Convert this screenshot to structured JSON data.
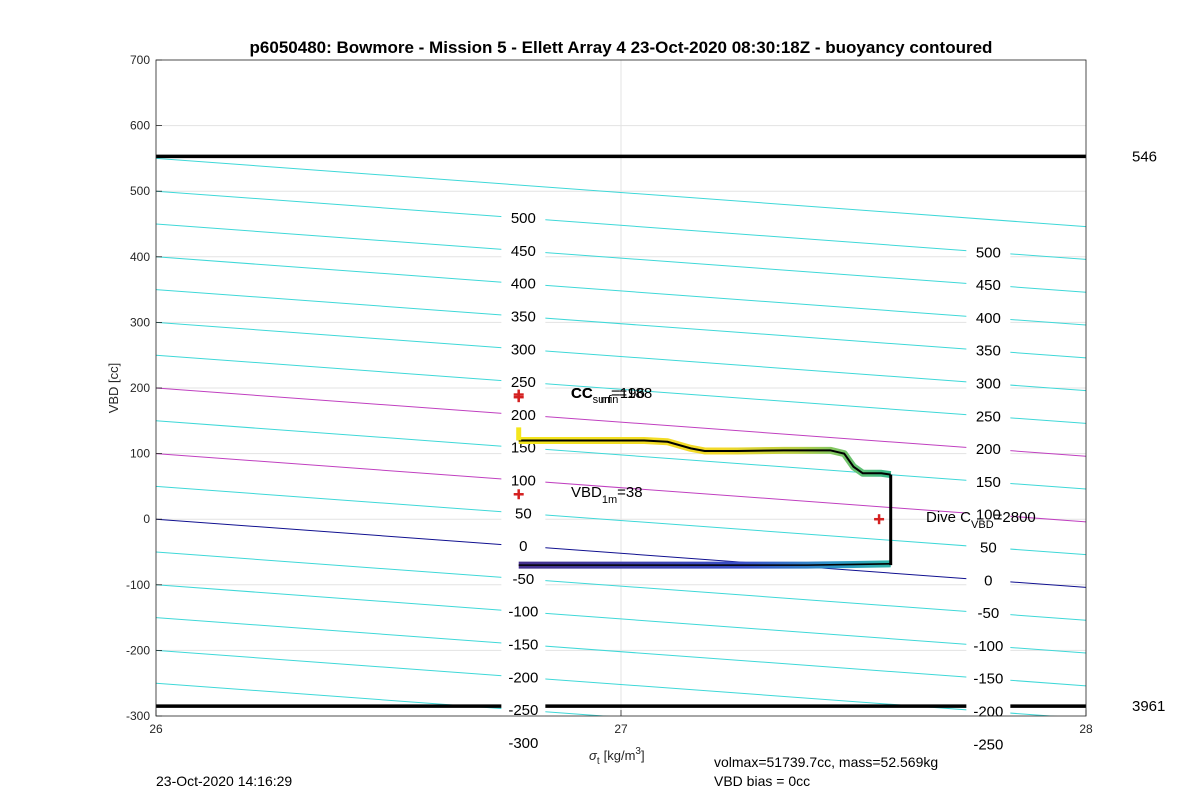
{
  "chart_data": {
    "type": "line",
    "title": "p6050480: Bowmore - Mission 5 - Ellett Array 4 23-Oct-2020 08:30:18Z - buoyancy contoured",
    "xlabel_sym": "σ",
    "xlabel_sub": "t",
    "xlabel_units": "[kg/m",
    "xlabel_sup": "3",
    "xlabel_close": "]",
    "ylabel": "VBD [cc]",
    "xlim": [
      26,
      28
    ],
    "ylim": [
      -300,
      700
    ],
    "xticks": [
      26,
      27,
      28
    ],
    "yticks": [
      -300,
      -200,
      -100,
      0,
      100,
      200,
      300,
      400,
      500,
      600,
      700
    ],
    "grid": true,
    "limit_lines": [
      {
        "y": 553,
        "label": "546"
      },
      {
        "y": -285,
        "label": "3961"
      }
    ],
    "contours": {
      "slope_per_unit_x": -52,
      "cyan_color": "#3fd8d8",
      "magenta_color": "#c040c0",
      "zero_color": "#101090",
      "offsets": [
        -350,
        -300,
        -250,
        -200,
        -150,
        -100,
        -50,
        0,
        50,
        100,
        150,
        200,
        250,
        300,
        350,
        400,
        450,
        500,
        550
      ],
      "magenta_offsets": [
        100,
        200
      ],
      "zero_offset": 0,
      "label_sets": [
        {
          "x": 26.79,
          "values": [
            500,
            450,
            400,
            350,
            300,
            250,
            200,
            150,
            100,
            50,
            0,
            -50,
            -100,
            -150,
            -200,
            -250,
            -300
          ]
        },
        {
          "x": 27.79,
          "values": [
            500,
            450,
            400,
            350,
            300,
            250,
            200,
            150,
            100,
            50,
            0,
            -50,
            -100,
            -150,
            -200,
            -250
          ]
        }
      ]
    },
    "profile": {
      "upper": [
        [
          26.78,
          120
        ],
        [
          26.9,
          120
        ],
        [
          27.0,
          120
        ],
        [
          27.05,
          120
        ],
        [
          27.1,
          118
        ],
        [
          27.15,
          108
        ],
        [
          27.18,
          104
        ],
        [
          27.25,
          104
        ],
        [
          27.35,
          105
        ],
        [
          27.45,
          105
        ],
        [
          27.48,
          100
        ],
        [
          27.5,
          80
        ],
        [
          27.52,
          70
        ],
        [
          27.56,
          70
        ],
        [
          27.58,
          68
        ]
      ],
      "lower": [
        [
          26.78,
          -70
        ],
        [
          26.9,
          -70
        ],
        [
          27.0,
          -70
        ],
        [
          27.1,
          -70
        ],
        [
          27.2,
          -70
        ],
        [
          27.3,
          -70
        ],
        [
          27.4,
          -70
        ],
        [
          27.5,
          -69
        ],
        [
          27.58,
          -68
        ]
      ],
      "vertical_left": {
        "x": 26.78,
        "y0": 120,
        "y1": 140
      },
      "vertical_right": {
        "x": 27.58,
        "y0": 68,
        "y1": -70
      }
    },
    "markers": [
      {
        "x": 26.78,
        "y": 190
      },
      {
        "x": 26.78,
        "y": 186
      },
      {
        "x": 26.78,
        "y": 38
      },
      {
        "x": 27.555,
        "y": 0
      }
    ],
    "annotations": {
      "cc_a_main": "CC",
      "cc_a_sub": "surf",
      "cc_a_value": "=196",
      "cc_b_main": "CC",
      "cc_b_sub": "min",
      "cc_b_value": "=188",
      "vbd_main": "VBD",
      "vbd_sub": "1m",
      "vbd_value": "=38",
      "dive_main": "Dive C",
      "dive_sub": "VBD",
      "dive_value": "=2800"
    }
  },
  "footer": {
    "timestamp": "23-Oct-2020 14:16:29",
    "volmax": "volmax=51739.7cc, mass=52.569kg",
    "bias": "VBD bias = 0cc"
  }
}
